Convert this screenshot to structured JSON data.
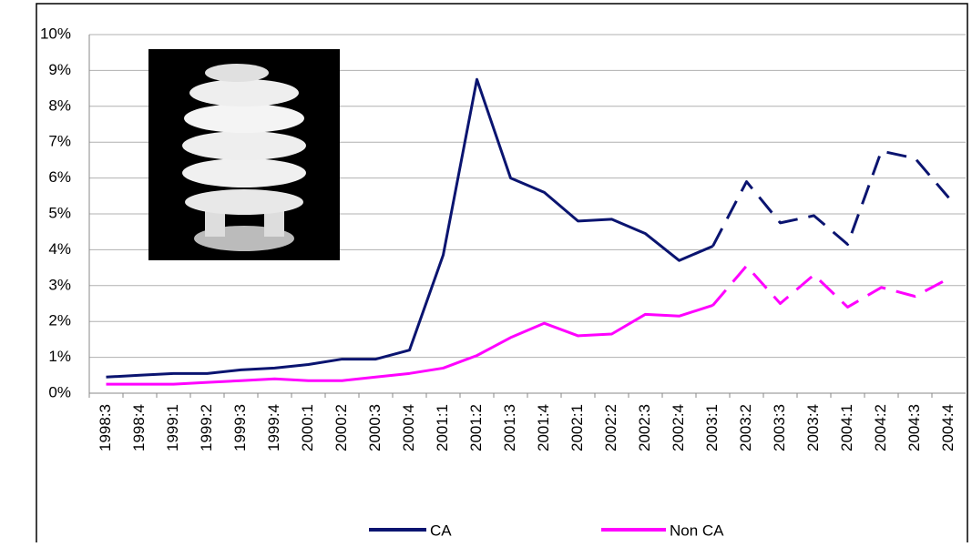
{
  "chart_data": {
    "type": "line",
    "categories": [
      "1998:3",
      "1998:4",
      "1999:1",
      "1999:2",
      "1999:3",
      "1999:4",
      "2000:1",
      "2000:2",
      "2000:3",
      "2000:4",
      "2001:1",
      "2001:2",
      "2001:3",
      "2001:4",
      "2002:1",
      "2002:2",
      "2002:3",
      "2002:4",
      "2003:1",
      "2003:2",
      "2003:3",
      "2003:4",
      "2004:1",
      "2004:2",
      "2004:3",
      "2004:4"
    ],
    "series": [
      {
        "name": "CA",
        "color": "#0a1470",
        "values": [
          0.45,
          0.5,
          0.55,
          0.55,
          0.65,
          0.7,
          0.8,
          0.95,
          0.95,
          1.2,
          3.85,
          8.75,
          6.0,
          5.6,
          4.8,
          4.85,
          4.45,
          3.7,
          4.1,
          5.9,
          4.75,
          4.95,
          4.15,
          6.75,
          6.55,
          5.45
        ]
      },
      {
        "name": "Non CA",
        "color": "#ff00ff",
        "values": [
          0.25,
          0.25,
          0.25,
          0.3,
          0.35,
          0.4,
          0.35,
          0.35,
          0.45,
          0.55,
          0.7,
          1.05,
          1.55,
          1.95,
          1.6,
          1.65,
          2.2,
          2.15,
          2.45,
          3.55,
          2.5,
          3.3,
          2.4,
          2.95,
          2.7,
          3.2
        ]
      }
    ],
    "dashed_from": "2003:1",
    "ylim": [
      0,
      10
    ],
    "yticks": [
      {
        "value": 0,
        "label": "0%"
      },
      {
        "value": 1,
        "label": "1%"
      },
      {
        "value": 2,
        "label": "2%"
      },
      {
        "value": 3,
        "label": "3%"
      },
      {
        "value": 4,
        "label": "4%"
      },
      {
        "value": 5,
        "label": "5%"
      },
      {
        "value": 6,
        "label": "6%"
      },
      {
        "value": 7,
        "label": "7%"
      },
      {
        "value": 8,
        "label": "8%"
      },
      {
        "value": 9,
        "label": "9%"
      },
      {
        "value": 10,
        "label": "10%"
      }
    ],
    "grid": true
  }
}
